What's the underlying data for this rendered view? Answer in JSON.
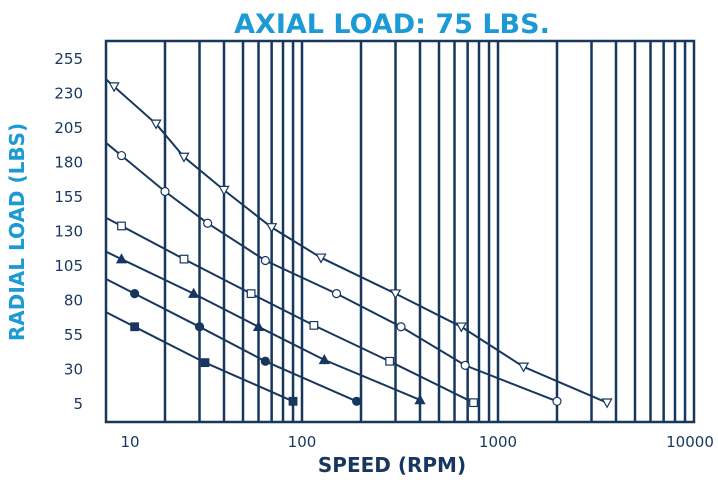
{
  "chart_data": {
    "type": "line",
    "title": "AXIAL LOAD: 75 LBS.",
    "xlabel": "SPEED (RPM)",
    "ylabel": "RADIAL LOAD (LBS)",
    "x_scale": "log",
    "xlim": [
      10,
      10000
    ],
    "ylim": [
      -8,
      268
    ],
    "x_ticks": [
      10,
      100,
      1000,
      10000
    ],
    "x_tick_labels": [
      "10",
      "100",
      "1000",
      "10000"
    ],
    "y_ticks": [
      5,
      30,
      55,
      80,
      105,
      130,
      155,
      180,
      205,
      230,
      255
    ],
    "y_tick_labels": [
      "5",
      "30",
      "55",
      "80",
      "105",
      "130",
      "155",
      "180",
      "205",
      "230",
      "255"
    ],
    "grid": "vertical",
    "colors": {
      "grid": "#17375e",
      "line": "#17375e",
      "title": "#1b9ad6",
      "ylabel": "#1b9ad6",
      "xlabel": "#17375e"
    },
    "series": [
      {
        "marker": "triangle-down-open",
        "x": [
          11,
          18,
          25,
          40,
          70,
          125,
          300,
          650,
          1350,
          3600
        ],
        "y": [
          235,
          208,
          184,
          160,
          133,
          111,
          85,
          61,
          32,
          6
        ]
      },
      {
        "marker": "circle-open",
        "x": [
          12,
          20,
          33,
          65,
          150,
          320,
          680,
          2000
        ],
        "y": [
          185,
          159,
          136,
          109,
          85,
          61,
          33,
          7
        ]
      },
      {
        "marker": "square-open",
        "x": [
          12,
          25,
          55,
          115,
          280,
          750
        ],
        "y": [
          134,
          110,
          85,
          62,
          36,
          6
        ]
      },
      {
        "marker": "triangle-up-filled",
        "x": [
          12,
          28,
          60,
          130,
          400
        ],
        "y": [
          110,
          85,
          61,
          37,
          8
        ]
      },
      {
        "marker": "circle-filled",
        "x": [
          14,
          30,
          65,
          190
        ],
        "y": [
          85,
          61,
          36,
          7
        ]
      },
      {
        "marker": "square-filled",
        "x": [
          14,
          32,
          90
        ],
        "y": [
          61,
          35,
          7
        ]
      }
    ]
  }
}
